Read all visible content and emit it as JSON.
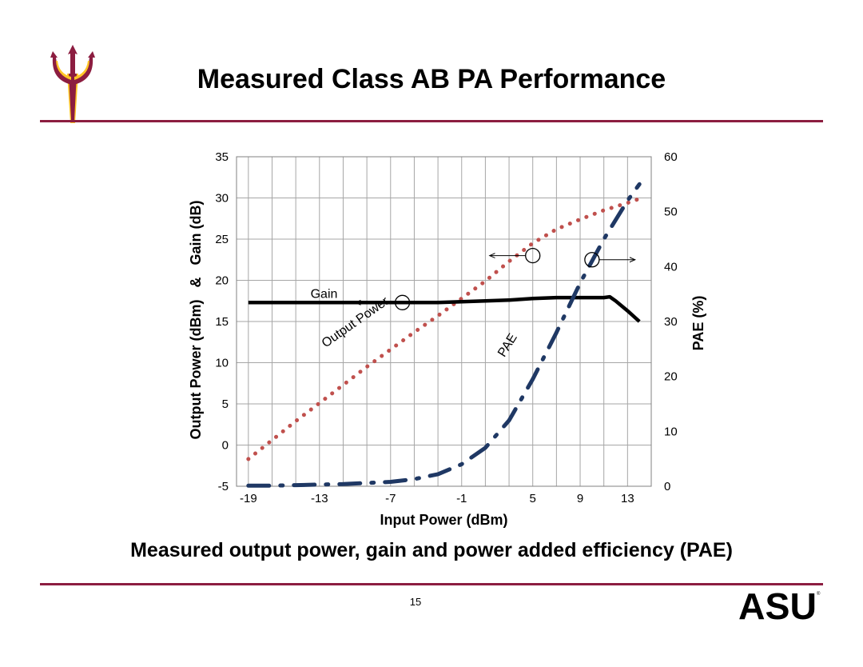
{
  "slide": {
    "title": "Measured Class AB PA Performance",
    "caption": "Measured output power, gain and power added efficiency (PAE)",
    "page_number": "15",
    "logo_text": "ASU"
  },
  "colors": {
    "accent": "#8c1d40",
    "gold": "#ffc627",
    "output_power": "#c0504d",
    "gain": "#000000",
    "pae": "#1f3864",
    "grid": "#a6a6a6"
  },
  "chart_data": {
    "type": "line",
    "xlabel": "Input Power (dBm)",
    "ylabel_left": "Output Power (dBm)   &   Gain (dB)",
    "ylabel_right": "PAE (%)",
    "xlim": [
      -20,
      15
    ],
    "ylim_left": [
      -5,
      35
    ],
    "ylim_right": [
      0,
      60
    ],
    "x_ticks": [
      -19,
      -13,
      -7,
      -1,
      5,
      9,
      13
    ],
    "y_left_ticks": [
      -5,
      0,
      5,
      10,
      15,
      20,
      25,
      30,
      35
    ],
    "y_right_ticks": [
      0,
      10,
      20,
      30,
      40,
      50,
      60
    ],
    "grid": true,
    "series": [
      {
        "name": "Output Power",
        "axis": "left",
        "style": "dotted",
        "x": [
          -19,
          -17,
          -15,
          -13,
          -11,
          -9,
          -7,
          -5,
          -3,
          -1,
          1,
          3,
          5,
          7,
          9,
          11,
          13,
          14
        ],
        "y": [
          -1.7,
          0.6,
          2.9,
          5.1,
          7.3,
          9.5,
          11.6,
          13.7,
          15.7,
          17.8,
          19.9,
          22.3,
          24.5,
          26.2,
          27.4,
          28.5,
          29.4,
          29.9
        ]
      },
      {
        "name": "Gain",
        "axis": "left",
        "style": "solid",
        "x": [
          -19,
          -17,
          -15,
          -13,
          -11,
          -9,
          -7,
          -5,
          -3,
          -1,
          1,
          3,
          5,
          7,
          9,
          10,
          11,
          11.5,
          12,
          13,
          14
        ],
        "y": [
          17.3,
          17.3,
          17.3,
          17.3,
          17.3,
          17.3,
          17.3,
          17.3,
          17.3,
          17.4,
          17.5,
          17.6,
          17.8,
          17.9,
          17.9,
          17.9,
          17.9,
          18.0,
          17.5,
          16.3,
          15.0
        ]
      },
      {
        "name": "PAE",
        "axis": "right",
        "style": "dash-dot",
        "x": [
          -19,
          -17,
          -15,
          -13,
          -11,
          -9,
          -7,
          -5,
          -3,
          -1,
          1,
          3,
          5,
          7,
          9,
          11,
          13,
          14
        ],
        "y": [
          0.1,
          0.1,
          0.2,
          0.3,
          0.4,
          0.6,
          0.8,
          1.3,
          2.2,
          4.0,
          7.0,
          12.0,
          19.5,
          28.0,
          37.0,
          45.0,
          52.0,
          55.0
        ]
      }
    ],
    "annotations": [
      {
        "text": "Gain",
        "x": -6,
        "y": 17.3,
        "arrow": "left"
      },
      {
        "text": "Output Power",
        "x": 5,
        "y": 23,
        "arrow": "left"
      },
      {
        "text": "PAE",
        "x": 10,
        "y": 22.5,
        "arrow": "right"
      }
    ]
  }
}
